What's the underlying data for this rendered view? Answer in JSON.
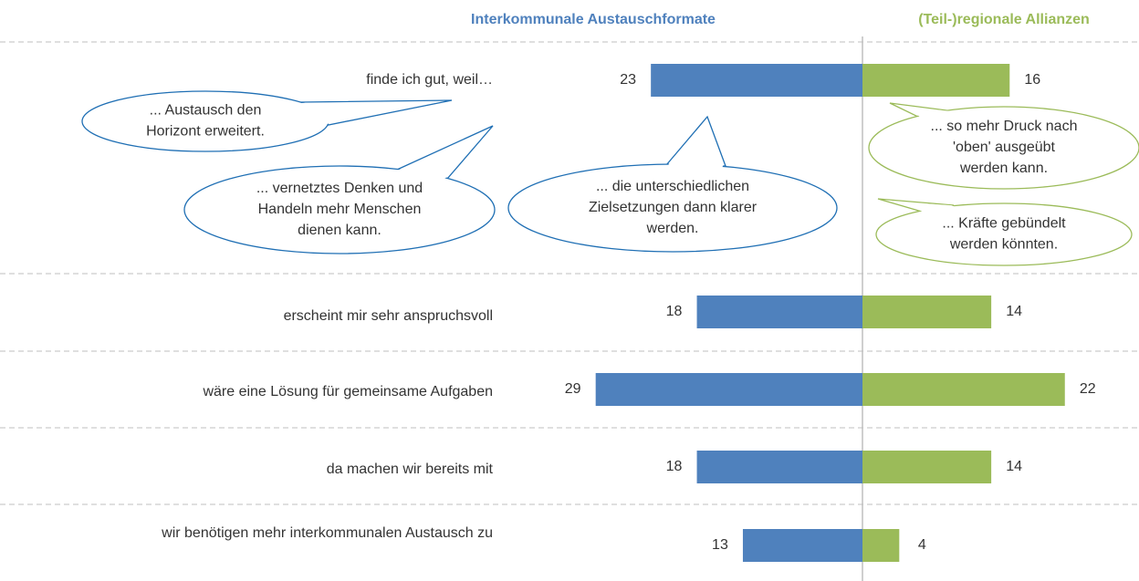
{
  "chart_data": {
    "type": "butterfly",
    "categories": [
      "finde ich gut, weil…",
      "erscheint mir sehr anspruchsvoll",
      "wäre eine Lösung für gemeinsame Aufgaben",
      "da machen wir bereits mit",
      "wir benötigen mehr interkommunalen Austausch zu"
    ],
    "series": [
      {
        "name": "Interkommunale Austauschformate",
        "color": "#4f81bd",
        "values": [
          23,
          18,
          29,
          18,
          13
        ]
      },
      {
        "name": "(Teil-)regionale Allianzen",
        "color": "#9bbb59",
        "values": [
          16,
          14,
          22,
          14,
          4
        ]
      }
    ],
    "annotations": [
      {
        "lines": [
          "... Austausch den",
          "Horizont erweitert."
        ],
        "color": "#1f6fb4"
      },
      {
        "lines": [
          "... vernetztes Denken und",
          "Handeln mehr Menschen",
          "dienen kann."
        ],
        "color": "#1f6fb4"
      },
      {
        "lines": [
          "... die unterschiedlichen",
          "Zielsetzungen dann klarer",
          "werden."
        ],
        "color": "#1f6fb4"
      },
      {
        "lines": [
          "... so mehr Druck nach",
          "'oben' ausgeübt",
          "werden kann."
        ],
        "color": "#9bbb59"
      },
      {
        "lines": [
          "... Kräfte gebündelt",
          "werden könnten."
        ],
        "color": "#9bbb59"
      }
    ]
  }
}
